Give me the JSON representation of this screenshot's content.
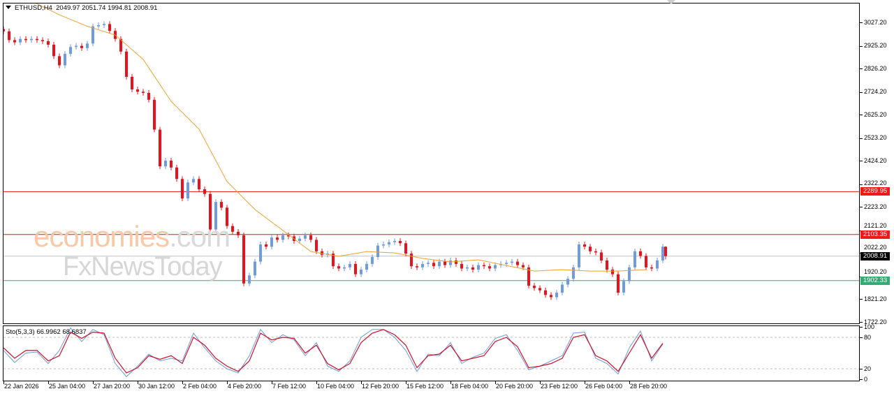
{
  "header": {
    "symbol_info": "ETHUSD,H4",
    "ohlc": "2049.97 2051.74 1994.81 2008.91"
  },
  "indicator": {
    "label": "Sto(5,3,3) 66.9962 68.6837",
    "levels": [
      "100",
      "80",
      "20",
      "0"
    ]
  },
  "watermark": {
    "line1_main": "economies",
    "line1_suffix": ".com",
    "line2": "FxNewsToday"
  },
  "colors": {
    "bull": "#6f9be0",
    "bear": "#e3141b",
    "ma": "#f0a030",
    "resistance": "#e3141b",
    "support": "#3aa874",
    "current": "#c0c0c0",
    "sto_k": "#6f9be0",
    "sto_d": "#d1102a"
  },
  "price_axis": {
    "ticks": [
      "3027.20",
      "2925.20",
      "2826.20",
      "2724.20",
      "2625.20",
      "2523.20",
      "2424.20",
      "2322.20",
      "2223.20",
      "2121.20",
      "2022.20",
      "1920.20",
      "1821.20",
      "1722.20"
    ]
  },
  "levels": [
    {
      "value": 2289.95,
      "label": "2289.95",
      "kind": "resistance"
    },
    {
      "value": 2103.35,
      "label": "2103.35",
      "kind": "resistance"
    },
    {
      "value": 2008.91,
      "label": "2008.91",
      "kind": "current"
    },
    {
      "value": 1902.33,
      "label": "1902.33",
      "kind": "support"
    }
  ],
  "time_axis": {
    "labels": [
      "22 Jan 2026",
      "25 Jan 04:00",
      "27 Jan 20:00",
      "30 Jan 12:00",
      "2 Feb 04:00",
      "4 Feb 20:00",
      "7 Feb 12:00",
      "10 Feb 04:00",
      "12 Feb 20:00",
      "15 Feb 12:00",
      "18 Feb 04:00",
      "20 Feb 20:00",
      "23 Feb 12:00",
      "26 Feb 04:00",
      "28 Feb 20:00"
    ]
  },
  "chart_data": {
    "type": "candlestick",
    "symbol": "ETHUSD",
    "timeframe": "H4",
    "ylim": [
      1722.2,
      3027.2
    ],
    "closes": [
      2988,
      2950,
      2940,
      2955,
      2950,
      2955,
      2950,
      2945,
      2930,
      2880,
      2840,
      2890,
      2920,
      2925,
      2915,
      2935,
      3010,
      3015,
      3020,
      2990,
      2955,
      2900,
      2790,
      2735,
      2725,
      2720,
      2690,
      2560,
      2400,
      2425,
      2395,
      2345,
      2260,
      2330,
      2345,
      2300,
      2280,
      2125,
      2245,
      2220,
      2140,
      2115,
      2100,
      1890,
      1925,
      1985,
      2060,
      2050,
      2090,
      2080,
      2100,
      2095,
      2075,
      2085,
      2100,
      2080,
      2030,
      2015,
      2020,
      1965,
      1955,
      1960,
      1975,
      1930,
      1950,
      1975,
      2005,
      2055,
      2060,
      2070,
      2075,
      2065,
      2020,
      1965,
      1960,
      1975,
      1980,
      1965,
      1985,
      1970,
      1990,
      1975,
      1955,
      1960,
      1950,
      1970,
      1965,
      1955,
      1970,
      1975,
      1980,
      1985,
      1970,
      1960,
      1880,
      1870,
      1860,
      1840,
      1830,
      1850,
      1885,
      1910,
      1960,
      2060,
      2050,
      2030,
      2025,
      1990,
      1950,
      1930,
      1850,
      1900,
      1960,
      2030,
      2010,
      1960,
      1955,
      1990,
      2050
    ],
    "last_bar": {
      "open": 2049.97,
      "high": 2051.74,
      "low": 1994.81,
      "close": 2008.91
    },
    "moving_average": [
      3150,
      3120,
      3060,
      3010,
      2972,
      2866,
      2683,
      2562,
      2334,
      2212,
      2121,
      2029,
      2008,
      2029,
      2023,
      1999,
      1984,
      1993,
      1968,
      1944,
      1950,
      1944,
      1944,
      1950
    ],
    "stochastic": {
      "ylim": [
        0,
        100
      ],
      "k": [
        55,
        32,
        50,
        52,
        30,
        55,
        98,
        72,
        95,
        85,
        30,
        5,
        25,
        48,
        35,
        40,
        35,
        88,
        60,
        35,
        20,
        12,
        45,
        95,
        70,
        85,
        75,
        45,
        70,
        25,
        15,
        35,
        80,
        95,
        95,
        80,
        55,
        15,
        48,
        45,
        70,
        30,
        42,
        50,
        78,
        85,
        55,
        18,
        25,
        35,
        45,
        88,
        90,
        40,
        30,
        10,
        60,
        92,
        35,
        67.0
      ],
      "d": [
        60,
        40,
        55,
        55,
        35,
        45,
        90,
        78,
        90,
        88,
        40,
        12,
        22,
        45,
        38,
        45,
        30,
        80,
        65,
        40,
        25,
        15,
        35,
        88,
        75,
        80,
        78,
        50,
        65,
        30,
        18,
        30,
        70,
        88,
        95,
        85,
        65,
        22,
        45,
        48,
        65,
        35,
        40,
        45,
        72,
        80,
        62,
        22,
        25,
        30,
        40,
        80,
        85,
        45,
        35,
        15,
        50,
        85,
        40,
        68.68
      ]
    }
  }
}
